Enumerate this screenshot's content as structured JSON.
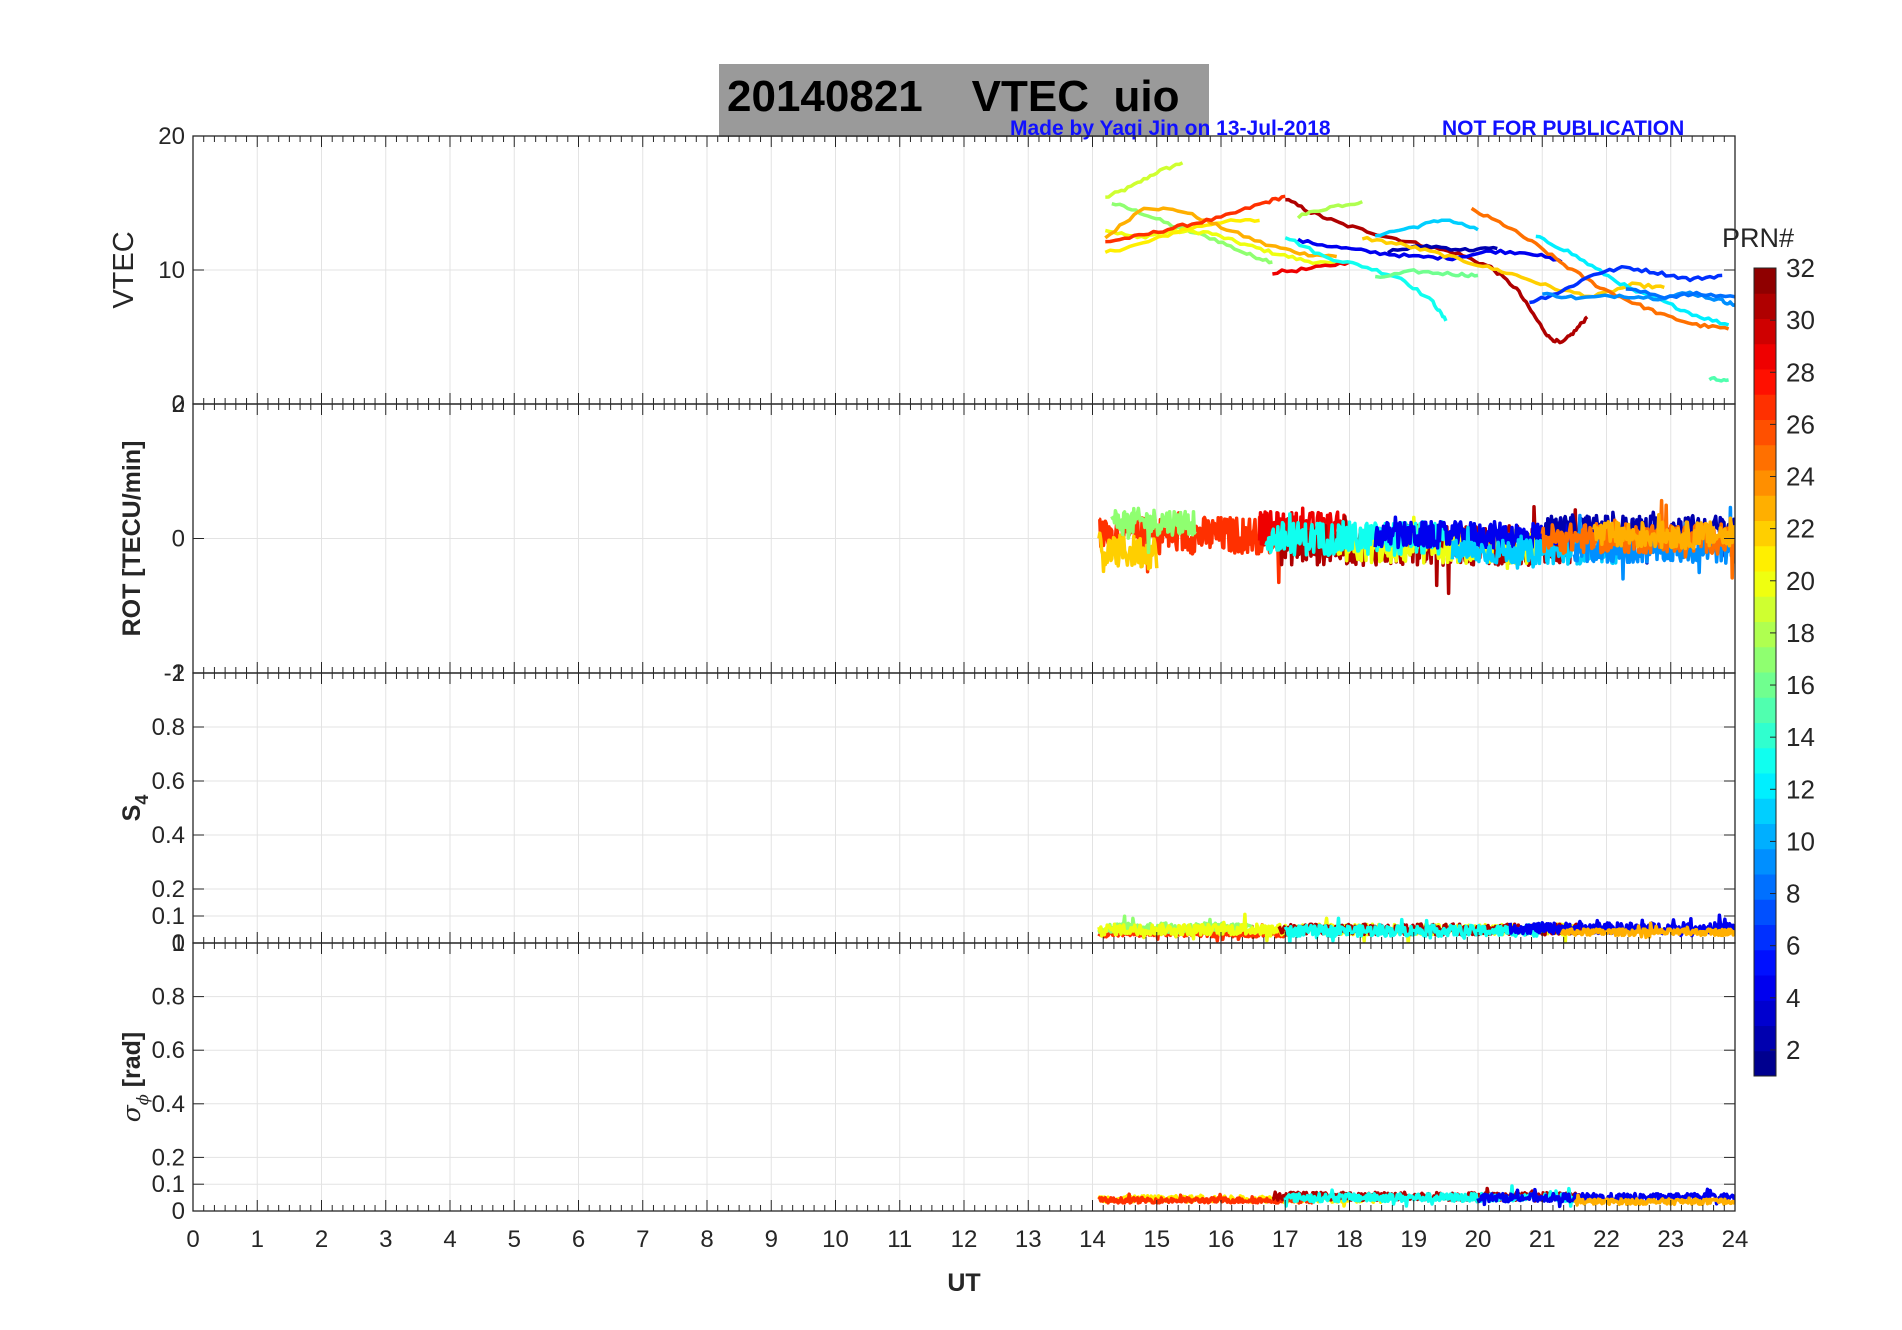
{
  "header": {
    "title": "20140821    VTEC  uio",
    "credit_author": "Made by Yaqi Jin on 13-Jul-2018",
    "credit_notice": "NOT FOR PUBLICATION"
  },
  "colors": {
    "title_box": "#9a9a9a",
    "credit_text": "#1010ff",
    "grid": "#e3e3e3"
  },
  "chart_data": [
    {
      "type": "line",
      "panel": "vtec",
      "ylabel": "VTEC",
      "ylim": [
        0,
        20
      ],
      "yticks": [
        0,
        10,
        20
      ],
      "xlim": [
        0,
        24
      ],
      "grid": true,
      "series": [
        {
          "prn": 19,
          "values": [
            [
              14.2,
              15.4
            ],
            [
              14.6,
              16.2
            ],
            [
              15.0,
              17.3
            ],
            [
              15.4,
              18.0
            ]
          ]
        },
        {
          "prn": 17,
          "values": [
            [
              14.3,
              15.0
            ],
            [
              14.8,
              14.2
            ],
            [
              15.3,
              13.2
            ],
            [
              15.9,
              12.3
            ],
            [
              16.4,
              11.2
            ],
            [
              16.8,
              10.6
            ]
          ]
        },
        {
          "prn": 20,
          "values": [
            [
              14.2,
              13.0
            ],
            [
              14.7,
              12.4
            ],
            [
              15.2,
              12.9
            ],
            [
              15.8,
              12.8
            ],
            [
              16.3,
              12.0
            ],
            [
              16.8,
              11.3
            ],
            [
              17.3,
              10.7
            ],
            [
              17.8,
              10.4
            ]
          ]
        },
        {
          "prn": 21,
          "values": [
            [
              14.2,
              11.3
            ],
            [
              14.8,
              12.0
            ],
            [
              15.4,
              13.0
            ],
            [
              16.0,
              13.6
            ],
            [
              16.6,
              13.7
            ]
          ]
        },
        {
          "prn": 23,
          "values": [
            [
              14.2,
              12.4
            ],
            [
              14.8,
              14.7
            ],
            [
              15.4,
              14.4
            ],
            [
              16.0,
              13.2
            ],
            [
              16.7,
              11.9
            ],
            [
              17.3,
              11.2
            ],
            [
              17.8,
              11.0
            ]
          ]
        },
        {
          "prn": 27,
          "values": [
            [
              14.2,
              12.1
            ],
            [
              14.8,
              12.6
            ],
            [
              15.4,
              13.3
            ],
            [
              16.0,
              13.9
            ],
            [
              16.6,
              14.9
            ],
            [
              17.0,
              15.5
            ]
          ]
        },
        {
          "prn": 31,
          "values": [
            [
              17.0,
              15.3
            ],
            [
              17.4,
              14.3
            ],
            [
              17.9,
              13.4
            ],
            [
              18.5,
              12.6
            ],
            [
              19.1,
              11.9
            ],
            [
              19.7,
              11.2
            ],
            [
              20.2,
              10.2
            ],
            [
              20.6,
              8.6
            ],
            [
              20.9,
              6.4
            ],
            [
              21.1,
              5.0
            ],
            [
              21.3,
              4.5
            ],
            [
              21.5,
              5.4
            ],
            [
              21.7,
              6.5
            ]
          ]
        },
        {
          "prn": 29,
          "values": [
            [
              16.8,
              9.8
            ],
            [
              17.4,
              10.1
            ],
            [
              18.0,
              10.6
            ]
          ]
        },
        {
          "prn": 18,
          "values": [
            [
              17.2,
              14.0
            ],
            [
              17.7,
              14.7
            ],
            [
              18.2,
              15.1
            ]
          ]
        },
        {
          "prn": 13,
          "values": [
            [
              17.0,
              12.5
            ],
            [
              17.6,
              11.0
            ],
            [
              18.2,
              10.3
            ],
            [
              18.8,
              9.4
            ],
            [
              19.3,
              7.6
            ],
            [
              19.5,
              6.2
            ]
          ]
        },
        {
          "prn": 11,
          "values": [
            [
              18.4,
              12.6
            ],
            [
              19.0,
              13.2
            ],
            [
              19.5,
              13.8
            ],
            [
              20.0,
              13.0
            ]
          ]
        },
        {
          "prn": 16,
          "values": [
            [
              18.4,
              9.4
            ],
            [
              19.0,
              9.9
            ],
            [
              19.6,
              9.7
            ],
            [
              20.0,
              9.6
            ]
          ]
        },
        {
          "prn": 4,
          "values": [
            [
              17.2,
              12.2
            ],
            [
              17.8,
              11.7
            ],
            [
              18.4,
              11.3
            ],
            [
              19.0,
              11.0
            ],
            [
              19.6,
              10.9
            ],
            [
              20.2,
              11.4
            ],
            [
              20.8,
              11.3
            ],
            [
              21.3,
              10.6
            ]
          ]
        },
        {
          "prn": 2,
          "values": [
            [
              18.6,
              11.4
            ],
            [
              19.2,
              11.8
            ],
            [
              19.8,
              11.5
            ],
            [
              20.3,
              11.6
            ]
          ]
        },
        {
          "prn": 22,
          "values": [
            [
              18.2,
              12.4
            ],
            [
              18.8,
              11.9
            ],
            [
              19.4,
              11.2
            ],
            [
              20.0,
              10.4
            ],
            [
              20.6,
              9.6
            ],
            [
              21.2,
              8.6
            ],
            [
              21.8,
              8.0
            ],
            [
              22.4,
              8.9
            ],
            [
              22.9,
              8.7
            ]
          ]
        },
        {
          "prn": 25,
          "values": [
            [
              19.9,
              14.5
            ],
            [
              20.4,
              13.4
            ],
            [
              20.9,
              11.9
            ],
            [
              21.4,
              10.2
            ],
            [
              21.9,
              8.7
            ],
            [
              22.4,
              7.6
            ],
            [
              22.9,
              6.6
            ],
            [
              23.4,
              5.9
            ],
            [
              23.9,
              5.6
            ]
          ]
        },
        {
          "prn": 12,
          "values": [
            [
              20.9,
              12.5
            ],
            [
              21.4,
              11.4
            ],
            [
              21.9,
              9.9
            ],
            [
              22.4,
              8.5
            ],
            [
              22.9,
              7.6
            ],
            [
              23.4,
              6.6
            ],
            [
              23.9,
              5.9
            ]
          ]
        },
        {
          "prn": 6,
          "values": [
            [
              20.8,
              7.6
            ],
            [
              21.3,
              8.4
            ],
            [
              21.8,
              9.7
            ],
            [
              22.3,
              10.2
            ],
            [
              22.8,
              9.8
            ],
            [
              23.3,
              9.3
            ],
            [
              23.8,
              9.6
            ]
          ]
        },
        {
          "prn": 9,
          "values": [
            [
              21.0,
              8.2
            ],
            [
              21.6,
              7.9
            ],
            [
              22.2,
              8.1
            ],
            [
              22.8,
              7.9
            ],
            [
              23.3,
              8.3
            ],
            [
              23.8,
              7.7
            ],
            [
              24.0,
              7.4
            ]
          ]
        },
        {
          "prn": 8,
          "values": [
            [
              22.3,
              8.6
            ],
            [
              22.9,
              8.0
            ],
            [
              23.4,
              8.2
            ],
            [
              24.0,
              8.0
            ]
          ]
        },
        {
          "prn": 15,
          "values": [
            [
              23.6,
              1.9
            ],
            [
              23.9,
              1.8
            ]
          ]
        }
      ]
    },
    {
      "type": "line",
      "panel": "rot",
      "ylabel": "ROT [TECU/min]",
      "ylim": [
        -2,
        2
      ],
      "yticks": [
        -2,
        0,
        2
      ],
      "xlim": [
        0,
        24
      ],
      "grid": true,
      "series": [
        {
          "prn": 27,
          "x_range": [
            14.1,
            17.0
          ],
          "mean": 0.05,
          "amplitude": 0.28
        },
        {
          "prn": 22,
          "x_range": [
            14.1,
            15.0
          ],
          "mean": -0.2,
          "amplitude": 0.25
        },
        {
          "prn": 17,
          "x_range": [
            14.3,
            15.6
          ],
          "mean": 0.25,
          "amplitude": 0.2
        },
        {
          "prn": 29,
          "x_range": [
            16.6,
            18.0
          ],
          "mean": 0.15,
          "amplitude": 0.25
        },
        {
          "prn": 31,
          "x_range": [
            16.9,
            21.6
          ],
          "mean": -0.1,
          "amplitude": 0.3
        },
        {
          "prn": 20,
          "x_range": [
            17.8,
            21.0
          ],
          "mean": -0.15,
          "amplitude": 0.22
        },
        {
          "prn": 13,
          "x_range": [
            16.7,
            19.5
          ],
          "mean": 0.0,
          "amplitude": 0.25
        },
        {
          "prn": 4,
          "x_range": [
            18.4,
            21.4
          ],
          "mean": 0.05,
          "amplitude": 0.2
        },
        {
          "prn": 11,
          "x_range": [
            19.6,
            22.2
          ],
          "mean": -0.2,
          "amplitude": 0.18
        },
        {
          "prn": 2,
          "x_range": [
            21.0,
            24.0
          ],
          "mean": 0.15,
          "amplitude": 0.2
        },
        {
          "prn": 9,
          "x_range": [
            21.5,
            24.0
          ],
          "mean": -0.15,
          "amplitude": 0.22
        },
        {
          "prn": 25,
          "x_range": [
            21.0,
            24.0
          ],
          "mean": 0.0,
          "amplitude": 0.22
        },
        {
          "prn": 23,
          "x_range": [
            21.8,
            24.0
          ],
          "mean": 0.05,
          "amplitude": 0.2
        }
      ]
    },
    {
      "type": "line",
      "panel": "s4",
      "ylabel": "S4",
      "ylim": [
        0,
        1
      ],
      "yticks": [
        0,
        0.1,
        0.2,
        0.4,
        0.6,
        0.8,
        1
      ],
      "xlim": [
        0,
        24
      ],
      "grid": true,
      "series": [
        {
          "prn": 27,
          "x_range": [
            14.1,
            17.2
          ],
          "mean": 0.035,
          "amplitude": 0.012
        },
        {
          "prn": 17,
          "x_range": [
            14.1,
            16.5
          ],
          "mean": 0.055,
          "amplitude": 0.02
        },
        {
          "prn": 20,
          "x_range": [
            14.1,
            21.5
          ],
          "mean": 0.05,
          "amplitude": 0.02
        },
        {
          "prn": 31,
          "x_range": [
            16.9,
            21.6
          ],
          "mean": 0.05,
          "amplitude": 0.02
        },
        {
          "prn": 13,
          "x_range": [
            17.0,
            21.0
          ],
          "mean": 0.045,
          "amplitude": 0.02
        },
        {
          "prn": 4,
          "x_range": [
            20.5,
            24.0
          ],
          "mean": 0.055,
          "amplitude": 0.02
        },
        {
          "prn": 23,
          "x_range": [
            21.3,
            24.0
          ],
          "mean": 0.04,
          "amplitude": 0.012
        }
      ]
    },
    {
      "type": "line",
      "panel": "sigma_phi",
      "ylabel": "σ_ϕ [rad]",
      "xlabel": "UT",
      "ylim": [
        0,
        1
      ],
      "yticks": [
        0,
        0.1,
        0.2,
        0.4,
        0.6,
        0.8,
        1
      ],
      "xlim": [
        0,
        24
      ],
      "xticks": [
        0,
        1,
        2,
        3,
        4,
        5,
        6,
        7,
        8,
        9,
        10,
        11,
        12,
        13,
        14,
        15,
        16,
        17,
        18,
        19,
        20,
        21,
        22,
        23,
        24
      ],
      "grid": true,
      "series": [
        {
          "prn": 21,
          "x_range": [
            14.1,
            18.5
          ],
          "mean": 0.045,
          "amplitude": 0.012
        },
        {
          "prn": 27,
          "x_range": [
            14.1,
            17.5
          ],
          "mean": 0.04,
          "amplitude": 0.01
        },
        {
          "prn": 31,
          "x_range": [
            16.8,
            21.6
          ],
          "mean": 0.055,
          "amplitude": 0.015
        },
        {
          "prn": 13,
          "x_range": [
            17.0,
            21.5
          ],
          "mean": 0.05,
          "amplitude": 0.015
        },
        {
          "prn": 4,
          "x_range": [
            20.0,
            24.0
          ],
          "mean": 0.05,
          "amplitude": 0.015
        },
        {
          "prn": 23,
          "x_range": [
            21.5,
            24.0
          ],
          "mean": 0.035,
          "amplitude": 0.01
        }
      ]
    }
  ],
  "colorbar": {
    "title": "PRN#",
    "range": [
      1,
      32
    ],
    "ticks": [
      2,
      4,
      6,
      8,
      10,
      12,
      14,
      16,
      18,
      20,
      22,
      24,
      26,
      28,
      30,
      32
    ],
    "colormap": "jet"
  }
}
